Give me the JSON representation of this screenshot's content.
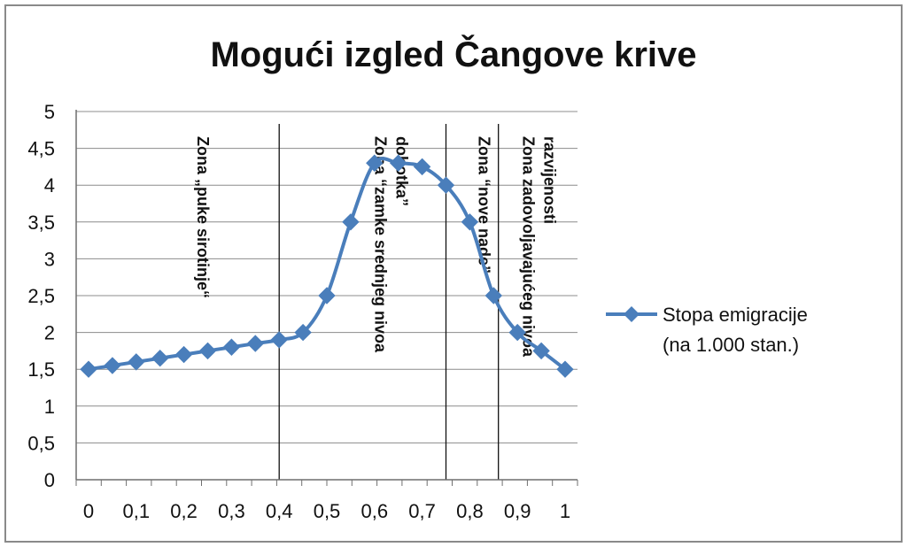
{
  "chart_data": {
    "type": "line",
    "title": "Mogući izgled Čangove krive",
    "xlabel": "",
    "ylabel": "",
    "ylim": [
      0,
      5
    ],
    "y_ticks": [
      "0",
      "0,5",
      "1",
      "1,5",
      "2",
      "2,5",
      "3",
      "3,5",
      "4",
      "4,5",
      "5"
    ],
    "x_ticks": [
      "0",
      "0,1",
      "0,2",
      "0,3",
      "0,4",
      "0,5",
      "0,6",
      "0,7",
      "0,8",
      "0,9",
      "1"
    ],
    "grid": true,
    "legend_position": "right",
    "series": [
      {
        "name": "Stopa emigracije (na 1.000 stan.)",
        "name_lines": [
          "Stopa emigracije",
          "(na 1.000 stan.)"
        ],
        "color": "#4a7ebb",
        "marker": "diamond",
        "x": [
          0,
          0.05,
          0.1,
          0.15,
          0.2,
          0.25,
          0.3,
          0.35,
          0.4,
          0.45,
          0.5,
          0.55,
          0.6,
          0.65,
          0.7,
          0.75,
          0.8,
          0.85,
          0.9,
          0.95,
          1
        ],
        "values": [
          1.5,
          1.55,
          1.6,
          1.65,
          1.7,
          1.75,
          1.8,
          1.85,
          1.9,
          2.0,
          2.5,
          3.5,
          4.3,
          4.3,
          4.25,
          4.0,
          3.5,
          2.5,
          2.0,
          1.75,
          1.5
        ]
      }
    ],
    "zone_boundaries": [
      0.4,
      0.75,
      0.86
    ],
    "annotations": [
      {
        "lines": [
          "Zona „puke sirotinje“"
        ],
        "x": 0.24
      },
      {
        "lines": [
          "Zona “zamke srednjeg nivoa",
          "dohotka”"
        ],
        "x": 0.635
      },
      {
        "lines": [
          "Zona “nove nade”"
        ],
        "x": 0.83
      },
      {
        "lines": [
          "Zona zadovoljavajućeg nivoa",
          "razvijenosti"
        ],
        "x": 0.945
      }
    ]
  }
}
